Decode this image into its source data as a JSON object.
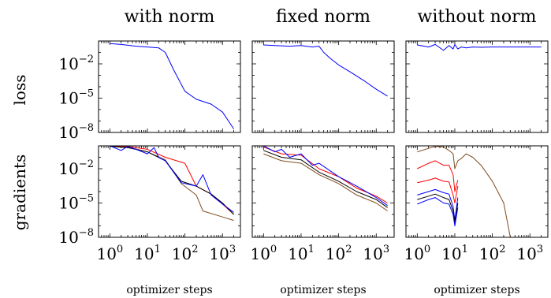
{
  "chart_data": {
    "type": "line",
    "scale": {
      "x": "log",
      "y": "log"
    },
    "xlim": [
      0.5,
      3000
    ],
    "ylim": [
      1e-08,
      1
    ],
    "columns": [
      "with norm",
      "fixed norm",
      "without norm"
    ],
    "rows": [
      "loss",
      "gradients"
    ],
    "xlabel": "optimizer steps",
    "x_ticks": [
      1,
      10,
      100,
      1000
    ],
    "x_tick_labels": [
      {
        "base": "10",
        "exp": "0"
      },
      {
        "base": "10",
        "exp": "1"
      },
      {
        "base": "10",
        "exp": "2"
      },
      {
        "base": "10",
        "exp": "3"
      }
    ],
    "y_ticks": [
      0.01,
      1e-05,
      1e-08
    ],
    "y_tick_labels": [
      {
        "base": "10",
        "exp": "−2"
      },
      {
        "base": "10",
        "exp": "−5"
      },
      {
        "base": "10",
        "exp": "−8"
      }
    ],
    "colors": {
      "blue": "#0000ff",
      "red": "#ff0000",
      "brown": "#7f4c1e",
      "black": "#000000"
    },
    "panels": {
      "loss": [
        {
          "series": [
            {
              "color": "blue",
              "x": [
                1,
                2,
                5,
                10,
                20,
                30,
                50,
                100,
                200,
                500,
                1000,
                2000
              ],
              "y": [
                0.6,
                0.5,
                0.35,
                0.3,
                0.25,
                0.1,
                0.003,
                4e-05,
                8e-06,
                3e-06,
                6e-07,
                2e-08
              ]
            }
          ]
        },
        {
          "series": [
            {
              "color": "blue",
              "x": [
                1,
                2,
                5,
                10,
                20,
                30,
                40,
                60,
                100,
                200,
                500,
                1000,
                2000
              ],
              "y": [
                0.45,
                0.4,
                0.35,
                0.4,
                0.3,
                0.35,
                0.1,
                0.03,
                0.008,
                0.002,
                0.0003,
                6e-05,
                1.5e-05
              ]
            }
          ]
        },
        {
          "series": [
            {
              "color": "blue",
              "x": [
                1,
                2,
                3,
                5,
                7,
                9,
                10,
                12,
                15,
                20,
                30,
                50,
                100,
                500,
                2000
              ],
              "y": [
                0.45,
                0.3,
                0.5,
                0.15,
                0.4,
                0.2,
                0.5,
                0.2,
                0.3,
                0.25,
                0.3,
                0.28,
                0.3,
                0.3,
                0.3
              ]
            }
          ]
        }
      ],
      "gradients": [
        {
          "series": [
            {
              "color": "brown",
              "x": [
                1,
                3,
                10,
                30,
                80,
                200,
                300,
                1000,
                2000
              ],
              "y": [
                1,
                0.8,
                0.3,
                0.06,
                0.0005,
                5e-05,
                2e-06,
                6e-07,
                3e-07
              ]
            },
            {
              "color": "red",
              "x": [
                1,
                3,
                10,
                30,
                100,
                200,
                500,
                1000,
                2000
              ],
              "y": [
                1,
                0.9,
                0.5,
                0.1,
                0.03,
                0.0003,
                6e-05,
                8e-06,
                1e-06
              ]
            },
            {
              "color": "black",
              "x": [
                1,
                3,
                10,
                30,
                80,
                200,
                500,
                1000,
                2000
              ],
              "y": [
                0.9,
                0.7,
                0.3,
                0.05,
                0.0008,
                0.0003,
                6e-05,
                1e-05,
                1e-06
              ]
            },
            {
              "color": "blue",
              "x": [
                1,
                2,
                3,
                5,
                10,
                15,
                20,
                30,
                50,
                80,
                200,
                300,
                500,
                1000,
                2000
              ],
              "y": [
                1,
                0.4,
                0.9,
                0.5,
                0.2,
                0.7,
                0.1,
                0.05,
                0.005,
                0.0006,
                0.0003,
                0.003,
                5e-05,
                8e-06,
                1.5e-06
              ]
            }
          ]
        },
        {
          "series": [
            {
              "color": "brown",
              "x": [
                1,
                3,
                10,
                30,
                100,
                300,
                1000,
                2000
              ],
              "y": [
                0.2,
                0.05,
                0.03,
                0.003,
                0.0005,
                5e-05,
                1e-05,
                2e-06
              ]
            },
            {
              "color": "black",
              "x": [
                1,
                3,
                10,
                30,
                100,
                300,
                1000,
                2000
              ],
              "y": [
                0.4,
                0.1,
                0.06,
                0.005,
                0.0008,
                0.0001,
                2e-05,
                4e-06
              ]
            },
            {
              "color": "red",
              "x": [
                1,
                3,
                10,
                30,
                100,
                300,
                1000,
                2000
              ],
              "y": [
                0.8,
                0.2,
                0.15,
                0.01,
                0.002,
                0.0002,
                4e-05,
                1e-05
              ]
            },
            {
              "color": "blue",
              "x": [
                1,
                2,
                3,
                5,
                10,
                20,
                30,
                100,
                300,
                1000,
                2000
              ],
              "y": [
                1,
                0.3,
                0.5,
                0.1,
                0.2,
                0.02,
                0.03,
                0.002,
                0.0003,
                3e-05,
                6e-06
              ]
            }
          ]
        },
        {
          "series": [
            {
              "color": "brown",
              "x": [
                1,
                2,
                3,
                5,
                7,
                9,
                10,
                12,
                15,
                20,
                30,
                50,
                100,
                200,
                300
              ],
              "y": [
                0.3,
                0.6,
                0.9,
                0.8,
                0.4,
                0.2,
                0.01,
                0.05,
                0.08,
                0.2,
                0.1,
                0.02,
                0.0008,
                1e-05,
                1e-08
              ]
            },
            {
              "color": "red",
              "x": [
                1,
                2,
                3,
                5,
                7,
                9,
                10,
                12
              ],
              "y": [
                0.01,
                0.03,
                0.05,
                0.02,
                0.02,
                0.003,
                0.0001,
                0.001
              ]
            },
            {
              "color": "red",
              "x": [
                1,
                2,
                3,
                5,
                7,
                9,
                10,
                12
              ],
              "y": [
                0.0006,
                0.001,
                0.0015,
                0.0008,
                0.0007,
                5e-05,
                1e-05,
                0.0003
              ]
            },
            {
              "color": "blue",
              "x": [
                1,
                2,
                3,
                5,
                7,
                9,
                10,
                12
              ],
              "y": [
                5e-05,
                0.0001,
                0.00015,
                8e-05,
                6e-05,
                5e-06,
                3e-07,
                3e-05
              ]
            },
            {
              "color": "black",
              "x": [
                1,
                2,
                3,
                5,
                7,
                9,
                10,
                12
              ],
              "y": [
                2e-05,
                4e-05,
                6e-05,
                3e-05,
                2e-05,
                2e-06,
                2e-07,
                1e-05
              ]
            },
            {
              "color": "blue",
              "x": [
                1,
                2,
                3,
                5,
                7,
                9,
                10,
                12
              ],
              "y": [
                8e-06,
                2e-05,
                3e-05,
                1e-05,
                8e-06,
                1e-06,
                1e-07,
                4e-06
              ]
            }
          ]
        }
      ]
    }
  }
}
